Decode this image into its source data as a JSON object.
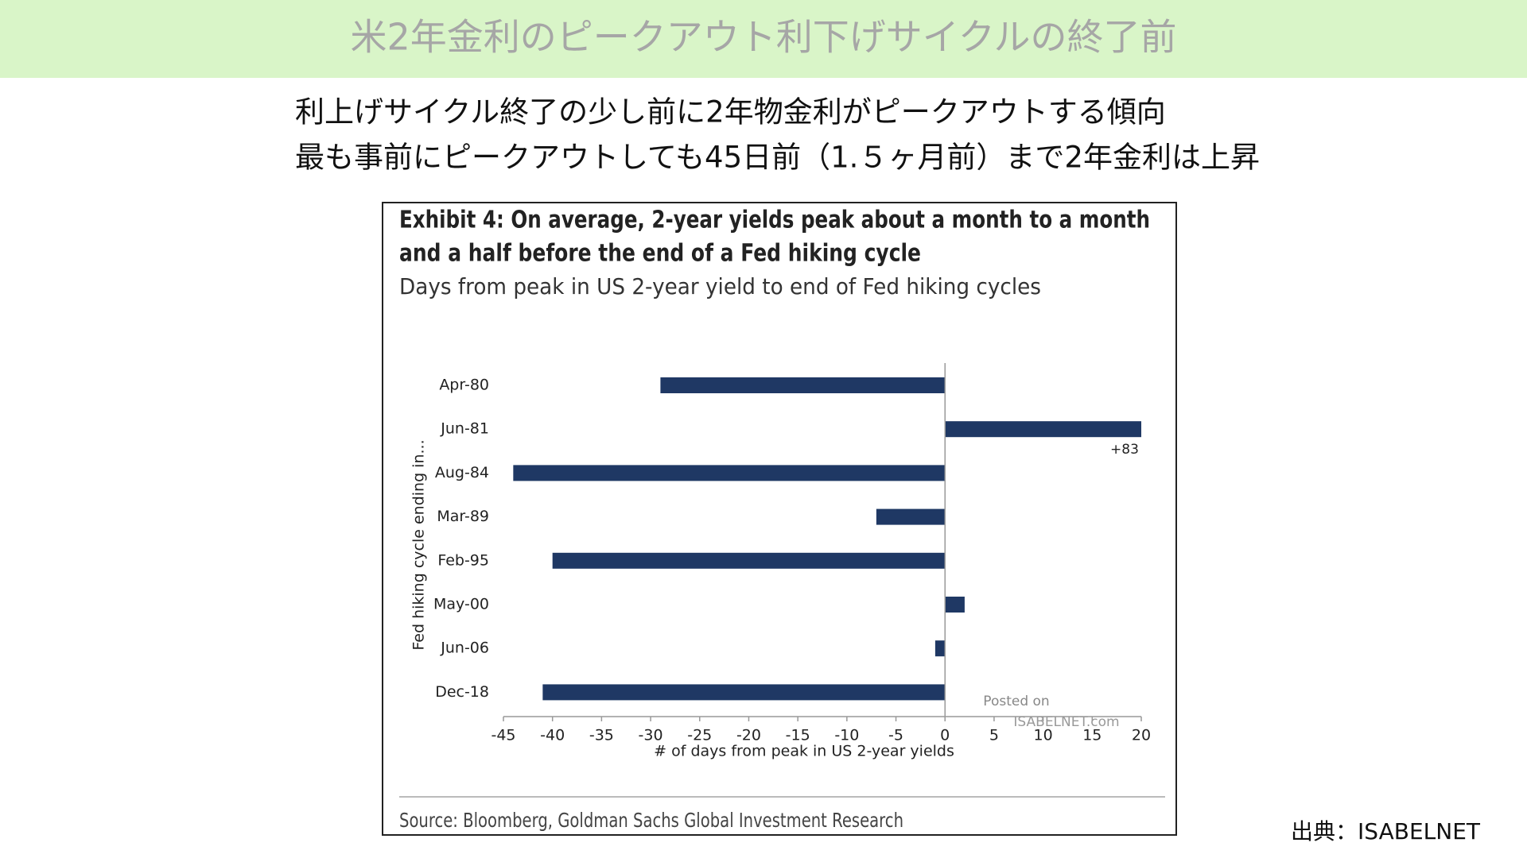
{
  "header": {
    "title": "米2年金利のピークアウト利下げサイクルの終了前"
  },
  "notes": [
    "利上げサイクル終了の少し前に2年物金利がピークアウトする傾向",
    "最も事前にピークアウトしても45日前（1.５ヶ月前）まで2年金利は上昇"
  ],
  "credit": "出典：ISABELNET",
  "chart_data": {
    "type": "bar",
    "orientation": "horizontal",
    "title": "Exhibit 4: On average, 2-year yields peak about a month to a month and a half before the end of a Fed hiking cycle",
    "title_lines": [
      "Exhibit 4: On average, 2-year yields peak about a month to a month",
      "and a half before the end of a Fed hiking cycle"
    ],
    "subtitle": "Days from peak in US 2-year yield to end of Fed hiking cycles",
    "y_label": "Fed hiking cycle ending in...",
    "x_label": "# of days from peak in US 2-year yields",
    "source": "Source: Bloomberg, Goldman Sachs Global Investment Research",
    "watermark": [
      "Posted on",
      "ISABELNET.com"
    ],
    "categories": [
      "Apr-80",
      "Jun-81",
      "Aug-84",
      "Mar-89",
      "Feb-95",
      "May-00",
      "Jun-06",
      "Dec-18"
    ],
    "values": [
      -29,
      83,
      -44,
      -7,
      -40,
      2,
      -1,
      -41
    ],
    "value_labels": [
      null,
      "+83",
      null,
      null,
      null,
      null,
      null,
      null
    ],
    "color": "#1f3864",
    "xlim": [
      -45,
      20
    ],
    "xticks": [
      -45,
      -40,
      -35,
      -30,
      -25,
      -20,
      -15,
      -10,
      -5,
      0,
      5,
      10,
      15,
      20
    ],
    "grid": false
  }
}
